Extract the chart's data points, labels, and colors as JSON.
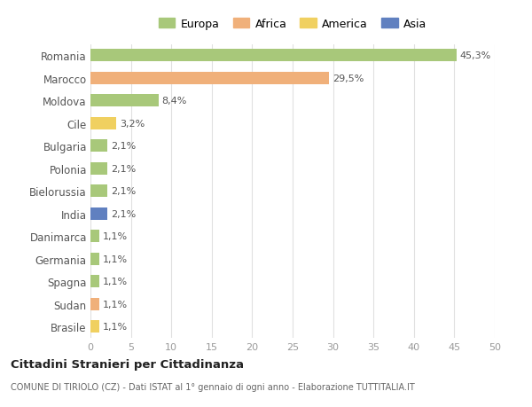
{
  "countries": [
    "Romania",
    "Marocco",
    "Moldova",
    "Cile",
    "Bulgaria",
    "Polonia",
    "Bielorussia",
    "India",
    "Danimarca",
    "Germania",
    "Spagna",
    "Sudan",
    "Brasile"
  ],
  "values": [
    45.3,
    29.5,
    8.4,
    3.2,
    2.1,
    2.1,
    2.1,
    2.1,
    1.1,
    1.1,
    1.1,
    1.1,
    1.1
  ],
  "labels": [
    "45,3%",
    "29,5%",
    "8,4%",
    "3,2%",
    "2,1%",
    "2,1%",
    "2,1%",
    "2,1%",
    "1,1%",
    "1,1%",
    "1,1%",
    "1,1%",
    "1,1%"
  ],
  "continents": [
    "Europa",
    "Africa",
    "Europa",
    "America",
    "Europa",
    "Europa",
    "Europa",
    "Asia",
    "Europa",
    "Europa",
    "Europa",
    "Africa",
    "America"
  ],
  "continent_colors": {
    "Europa": "#a8c87a",
    "Africa": "#f0b07a",
    "America": "#f0d060",
    "Asia": "#6080c0"
  },
  "legend_labels": [
    "Europa",
    "Africa",
    "America",
    "Asia"
  ],
  "legend_colors": [
    "#a8c87a",
    "#f0b07a",
    "#f0d060",
    "#6080c0"
  ],
  "title": "Cittadini Stranieri per Cittadinanza",
  "subtitle": "COMUNE DI TIRIOLO (CZ) - Dati ISTAT al 1° gennaio di ogni anno - Elaborazione TUTTITALIA.IT",
  "xlim": [
    0,
    50
  ],
  "xticks": [
    0,
    5,
    10,
    15,
    20,
    25,
    30,
    35,
    40,
    45,
    50
  ],
  "background_color": "#ffffff",
  "grid_color": "#e0e0e0"
}
